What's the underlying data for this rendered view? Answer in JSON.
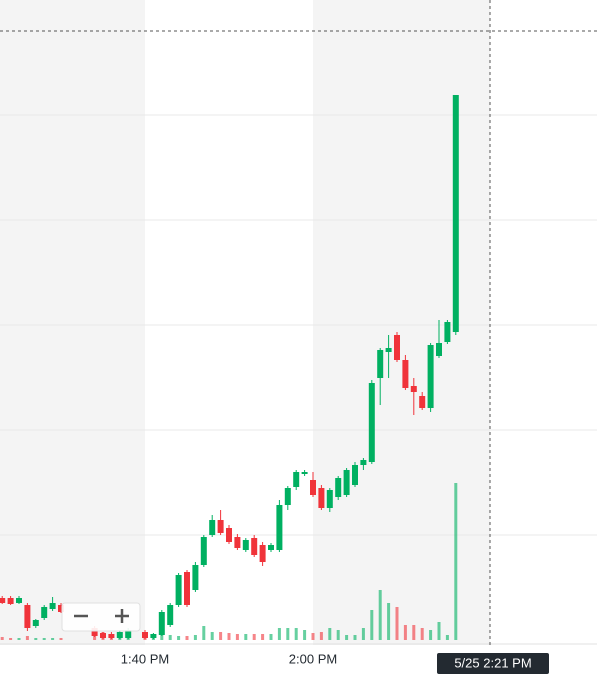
{
  "chart_data": {
    "type": "candlestick",
    "categories": [
      null,
      null,
      null,
      null,
      null,
      null,
      null,
      null,
      null,
      null,
      null,
      null,
      null,
      null,
      null,
      null,
      null,
      "1:40 PM",
      null,
      null,
      null,
      null,
      null,
      null,
      null,
      null,
      null,
      null,
      null,
      null,
      null,
      null,
      null,
      null,
      null,
      null,
      null,
      "2:00 PM",
      null,
      null,
      null,
      null,
      null,
      null,
      null,
      null,
      null,
      null,
      null,
      null,
      null,
      null,
      null,
      null,
      null
    ],
    "open": [
      42,
      42,
      37,
      35,
      14,
      22,
      31,
      35,
      null,
      null,
      null,
      12,
      7,
      6,
      2,
      2,
      null,
      8,
      2,
      5,
      15,
      35,
      68,
      50,
      75,
      105,
      120,
      112,
      103,
      90,
      102,
      95,
      90,
      90,
      135,
      153,
      166,
      160,
      152,
      132,
      143,
      145,
      155,
      175,
      178,
      262,
      288,
      305,
      280,
      254,
      244,
      232,
      284,
      298,
      308
    ],
    "high": [
      44,
      44,
      44,
      37,
      21,
      35,
      43,
      37,
      null,
      null,
      null,
      14,
      8,
      8,
      10,
      12,
      null,
      10,
      7,
      30,
      37,
      67,
      70,
      78,
      105,
      125,
      130,
      115,
      106,
      102,
      105,
      98,
      97,
      140,
      154,
      170,
      170,
      168,
      155,
      152,
      164,
      172,
      178,
      182,
      260,
      292,
      305,
      308,
      285,
      262,
      248,
      297,
      320,
      320,
      545
    ],
    "low": [
      36,
      35,
      36,
      9,
      12,
      20,
      29,
      27,
      null,
      null,
      null,
      3,
      1,
      1,
      1,
      1,
      null,
      1,
      1,
      4,
      13,
      33,
      33,
      48,
      73,
      103,
      105,
      96,
      90,
      88,
      83,
      74,
      88,
      88,
      130,
      150,
      164,
      143,
      130,
      128,
      140,
      143,
      153,
      170,
      176,
      235,
      262,
      278,
      250,
      225,
      230,
      228,
      282,
      296,
      305
    ],
    "close": [
      37,
      36,
      42,
      12,
      20,
      33,
      37,
      28,
      null,
      null,
      null,
      4,
      2,
      2,
      8,
      10,
      null,
      2,
      6,
      28,
      35,
      65,
      35,
      75,
      103,
      120,
      107,
      98,
      92,
      100,
      85,
      78,
      95,
      135,
      152,
      168,
      168,
      145,
      132,
      150,
      162,
      170,
      175,
      180,
      257,
      290,
      292,
      280,
      252,
      248,
      232,
      295,
      297,
      318,
      545
    ],
    "volume": [
      3,
      2,
      2,
      4,
      2,
      2,
      2,
      2,
      null,
      null,
      null,
      10,
      8,
      6,
      8,
      8,
      null,
      8,
      6,
      6,
      5,
      4,
      4,
      5,
      14,
      8,
      8,
      7,
      6,
      6,
      6,
      6,
      6,
      12,
      12,
      12,
      10,
      7,
      8,
      12,
      10,
      5,
      5,
      12,
      30,
      50,
      37,
      33,
      15,
      15,
      12,
      10,
      18,
      5,
      157
    ],
    "up_color": "#00b061",
    "down_color": "#f0333a",
    "ylim": [
      0,
      630
    ],
    "yticks": [
      105,
      210,
      315,
      420,
      525
    ],
    "grid": true,
    "y2lim": [
      0,
      630
    ],
    "crosshair_label": "5/25 2:21 PM"
  }
}
